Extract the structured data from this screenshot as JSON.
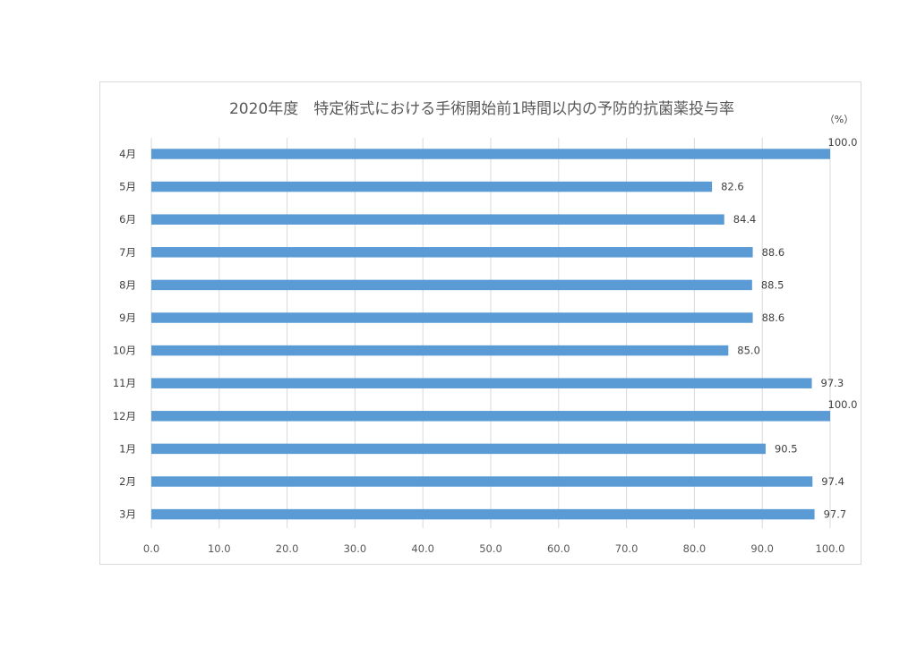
{
  "chart_data": {
    "type": "bar",
    "orientation": "horizontal",
    "title": "2020年度　特定術式における手術開始前1時間以内の予防的抗菌薬投与率",
    "unit_label": "（%）",
    "categories": [
      "4月",
      "5月",
      "6月",
      "7月",
      "8月",
      "9月",
      "10月",
      "11月",
      "12月",
      "1月",
      "2月",
      "3月"
    ],
    "series": [
      {
        "values": [
          100.0,
          82.6,
          84.4,
          88.6,
          88.5,
          88.6,
          85.0,
          97.3,
          100.0,
          90.5,
          97.4,
          97.7
        ],
        "color": "#5b9bd5"
      }
    ],
    "xlim": [
      0,
      100
    ],
    "xticks": [
      "0.0",
      "10.0",
      "20.0",
      "30.0",
      "40.0",
      "50.0",
      "60.0",
      "70.0",
      "80.0",
      "90.0",
      "100.0"
    ],
    "data_labels": [
      "100.0",
      "82.6",
      "84.4",
      "88.6",
      "88.5",
      "88.6",
      "85.0",
      "97.3",
      "100.0",
      "90.5",
      "97.4",
      "97.7"
    ],
    "grid": true,
    "legend": "none"
  }
}
